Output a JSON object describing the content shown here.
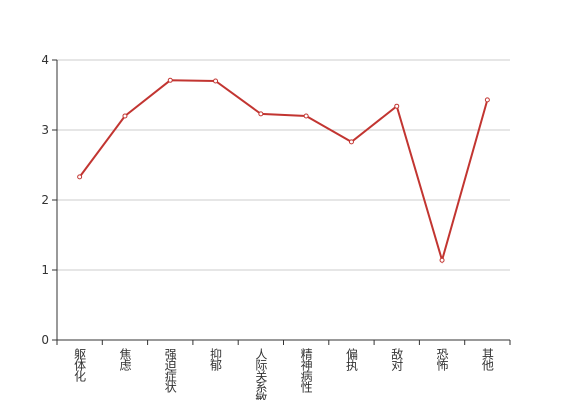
{
  "chart_data": {
    "type": "line",
    "categories": [
      "躯体化",
      "焦虑",
      "强迫症状",
      "抑郁",
      "人际关系敏感",
      "精神病性",
      "偏执",
      "敌对",
      "恐怖",
      "其他"
    ],
    "values": [
      2.33,
      3.2,
      3.71,
      3.7,
      3.23,
      3.2,
      2.83,
      3.34,
      1.14,
      3.43
    ],
    "color": "#c23531",
    "ylim": [
      0,
      4
    ],
    "yticks": [
      0,
      1,
      2,
      3,
      4
    ],
    "grid": true
  }
}
